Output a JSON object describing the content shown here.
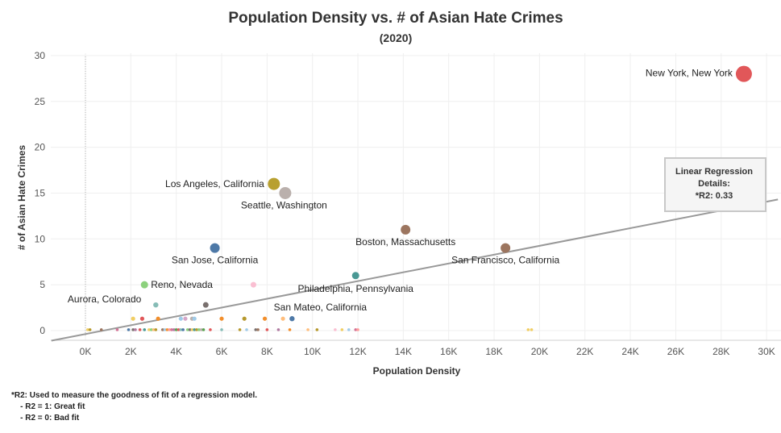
{
  "chart_data": {
    "type": "scatter",
    "title": "Population Density vs. # of Asian Hate Crimes",
    "subtitle": "(2020)",
    "xlabel": "Population Density",
    "ylabel": "# of Asian Hate Crimes",
    "xlim": [
      -1500,
      30500
    ],
    "ylim": [
      -1,
      31.5
    ],
    "xticks": [
      0,
      2000,
      4000,
      6000,
      8000,
      10000,
      12000,
      14000,
      16000,
      18000,
      20000,
      22000,
      24000,
      26000,
      28000,
      30000
    ],
    "xtick_labels": [
      "0K",
      "2K",
      "4K",
      "6K",
      "8K",
      "10K",
      "12K",
      "14K",
      "16K",
      "18K",
      "20K",
      "22K",
      "24K",
      "26K",
      "28K",
      "30K"
    ],
    "yticks": [
      0,
      5,
      10,
      15,
      20,
      25,
      30
    ],
    "ytick_labels": [
      "0",
      "5",
      "10",
      "15",
      "20",
      "25",
      "30"
    ],
    "grid": true,
    "labeled_points": [
      {
        "label": "New York, New York",
        "x": 29000,
        "y": 28,
        "color": "#e15759"
      },
      {
        "label": "Los Angeles, California",
        "x": 8300,
        "y": 16,
        "color": "#b8a030"
      },
      {
        "label": "Seattle, Washington",
        "x": 8800,
        "y": 15,
        "color": "#bab0ac"
      },
      {
        "label": "Boston, Massachusetts",
        "x": 14100,
        "y": 11,
        "color": "#9c755f"
      },
      {
        "label": "San Francisco, California",
        "x": 18500,
        "y": 9,
        "color": "#9c755f"
      },
      {
        "label": "San Jose, California",
        "x": 5700,
        "y": 9,
        "color": "#4e79a7"
      },
      {
        "label": "Philadelphia, Pennsylvania",
        "x": 11900,
        "y": 6,
        "color": "#499894"
      },
      {
        "label": "Reno, Nevada",
        "x": 2600,
        "y": 5,
        "color": "#8cd17d"
      },
      {
        "label": "Aurora, Colorado",
        "x": 3100,
        "y": 2.8,
        "color": "#86bcb6"
      },
      {
        "label": "San Mateo, California",
        "x": 9100,
        "y": 1.3,
        "color": "#4e79a7"
      }
    ],
    "other_points": [
      {
        "x": 5300,
        "y": 2.8,
        "color": "#79706e"
      },
      {
        "x": 7400,
        "y": 5,
        "color": "#fabfd2"
      },
      {
        "x": 2100,
        "y": 1.3,
        "color": "#f1ce63"
      },
      {
        "x": 2500,
        "y": 1.3,
        "color": "#e15759"
      },
      {
        "x": 3200,
        "y": 1.3,
        "color": "#f28e2b"
      },
      {
        "x": 4200,
        "y": 1.3,
        "color": "#a0cbe8"
      },
      {
        "x": 4400,
        "y": 1.3,
        "color": "#d4a6c8"
      },
      {
        "x": 4700,
        "y": 1.3,
        "color": "#bab0ac"
      },
      {
        "x": 4800,
        "y": 1.3,
        "color": "#a0cbe8"
      },
      {
        "x": 6000,
        "y": 1.3,
        "color": "#f28e2b"
      },
      {
        "x": 7000,
        "y": 1.3,
        "color": "#b6992d"
      },
      {
        "x": 7900,
        "y": 1.3,
        "color": "#f28e2b"
      },
      {
        "x": 8700,
        "y": 1.3,
        "color": "#ffbe7d"
      },
      {
        "x": 100,
        "y": 0.1,
        "color": "#f1ce63"
      },
      {
        "x": 200,
        "y": 0.1,
        "color": "#b6992d"
      },
      {
        "x": 700,
        "y": 0.1,
        "color": "#9c755f"
      },
      {
        "x": 1400,
        "y": 0.1,
        "color": "#d37295"
      },
      {
        "x": 1900,
        "y": 0.1,
        "color": "#4e79a7"
      },
      {
        "x": 2100,
        "y": 0.1,
        "color": "#79706e"
      },
      {
        "x": 2200,
        "y": 0.1,
        "color": "#b07aa1"
      },
      {
        "x": 2400,
        "y": 0.1,
        "color": "#e15759"
      },
      {
        "x": 2600,
        "y": 0.1,
        "color": "#499894"
      },
      {
        "x": 2800,
        "y": 0.1,
        "color": "#f1ce63"
      },
      {
        "x": 2900,
        "y": 0.1,
        "color": "#8cd17d"
      },
      {
        "x": 3000,
        "y": 0.1,
        "color": "#ffbe7d"
      },
      {
        "x": 3100,
        "y": 0.1,
        "color": "#b6992d"
      },
      {
        "x": 3400,
        "y": 0.1,
        "color": "#9d7660"
      },
      {
        "x": 3500,
        "y": 0.1,
        "color": "#a0cbe8"
      },
      {
        "x": 3600,
        "y": 0.1,
        "color": "#f28e2b"
      },
      {
        "x": 3700,
        "y": 0.1,
        "color": "#ff9d9a"
      },
      {
        "x": 3800,
        "y": 0.1,
        "color": "#d37295"
      },
      {
        "x": 3900,
        "y": 0.1,
        "color": "#b07aa1"
      },
      {
        "x": 4000,
        "y": 0.1,
        "color": "#59a14f"
      },
      {
        "x": 4100,
        "y": 0.1,
        "color": "#e15759"
      },
      {
        "x": 4200,
        "y": 0.1,
        "color": "#86bcb6"
      },
      {
        "x": 4300,
        "y": 0.1,
        "color": "#4e79a7"
      },
      {
        "x": 4500,
        "y": 0.1,
        "color": "#8cd17d"
      },
      {
        "x": 4600,
        "y": 0.1,
        "color": "#79706e"
      },
      {
        "x": 4700,
        "y": 0.1,
        "color": "#f1ce63"
      },
      {
        "x": 4800,
        "y": 0.1,
        "color": "#499894"
      },
      {
        "x": 4900,
        "y": 0.1,
        "color": "#b6992d"
      },
      {
        "x": 5000,
        "y": 0.1,
        "color": "#8cd17d"
      },
      {
        "x": 5100,
        "y": 0.1,
        "color": "#bab0ac"
      },
      {
        "x": 5200,
        "y": 0.1,
        "color": "#59a14f"
      },
      {
        "x": 5500,
        "y": 0.1,
        "color": "#e15759"
      },
      {
        "x": 6000,
        "y": 0.1,
        "color": "#86bcb6"
      },
      {
        "x": 6800,
        "y": 0.1,
        "color": "#b6992d"
      },
      {
        "x": 7100,
        "y": 0.1,
        "color": "#a0cbe8"
      },
      {
        "x": 7500,
        "y": 0.1,
        "color": "#79706e"
      },
      {
        "x": 7600,
        "y": 0.1,
        "color": "#9d7660"
      },
      {
        "x": 8000,
        "y": 0.1,
        "color": "#e15759"
      },
      {
        "x": 8500,
        "y": 0.1,
        "color": "#b07aa1"
      },
      {
        "x": 9000,
        "y": 0.1,
        "color": "#f28e2b"
      },
      {
        "x": 9800,
        "y": 0.1,
        "color": "#ffbe7d"
      },
      {
        "x": 10200,
        "y": 0.1,
        "color": "#b6992d"
      },
      {
        "x": 11000,
        "y": 0.1,
        "color": "#fabfd2"
      },
      {
        "x": 11300,
        "y": 0.1,
        "color": "#f1ce63"
      },
      {
        "x": 11600,
        "y": 0.1,
        "color": "#a0cbe8"
      },
      {
        "x": 11900,
        "y": 0.1,
        "color": "#d37295"
      },
      {
        "x": 12000,
        "y": 0.1,
        "color": "#ff9d9a"
      },
      {
        "x": 19500,
        "y": 0.1,
        "color": "#f1ce63"
      },
      {
        "x": 19650,
        "y": 0.1,
        "color": "#f1ce63"
      }
    ],
    "regression": {
      "x1": -1500,
      "y1": -1.1,
      "x2": 30500,
      "y2": 14.3,
      "color": "#999999"
    }
  },
  "regression_box": {
    "line1": "Linear Regression",
    "line2": "Details:",
    "line3": "*R2: 0.33"
  },
  "footnote": {
    "line1": "*R2: Used to measure the goodness of fit of a regression model.",
    "line2": "    - R2 = 1: Great fit",
    "line3": "    - R2 = 0: Bad fit"
  }
}
